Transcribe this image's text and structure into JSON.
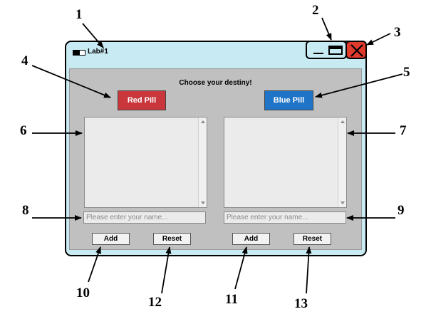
{
  "window": {
    "title": "Lab#1"
  },
  "main": {
    "prompt": "Choose your destiny!",
    "red_pill_label": "Red Pill",
    "blue_pill_label": "Blue Pill",
    "left_input_placeholder": "Please enter your name...",
    "right_input_placeholder": "Please enter your name...",
    "left_add_label": "Add",
    "left_reset_label": "Reset",
    "right_add_label": "Add",
    "right_reset_label": "Reset"
  },
  "callouts": [
    "1",
    "2",
    "3",
    "4",
    "5",
    "6",
    "7",
    "8",
    "9",
    "10",
    "11",
    "12",
    "13"
  ],
  "colors": {
    "window_frame": "#c8eaf2",
    "client_area": "#c0c0c0",
    "red_pill": "#c9373d",
    "blue_pill": "#1f74c7",
    "close_button": "#e03a2c"
  },
  "icons": {
    "window": "app-window-icon",
    "minimize": "minimize-icon",
    "maximize": "maximize-icon",
    "close": "close-icon"
  }
}
